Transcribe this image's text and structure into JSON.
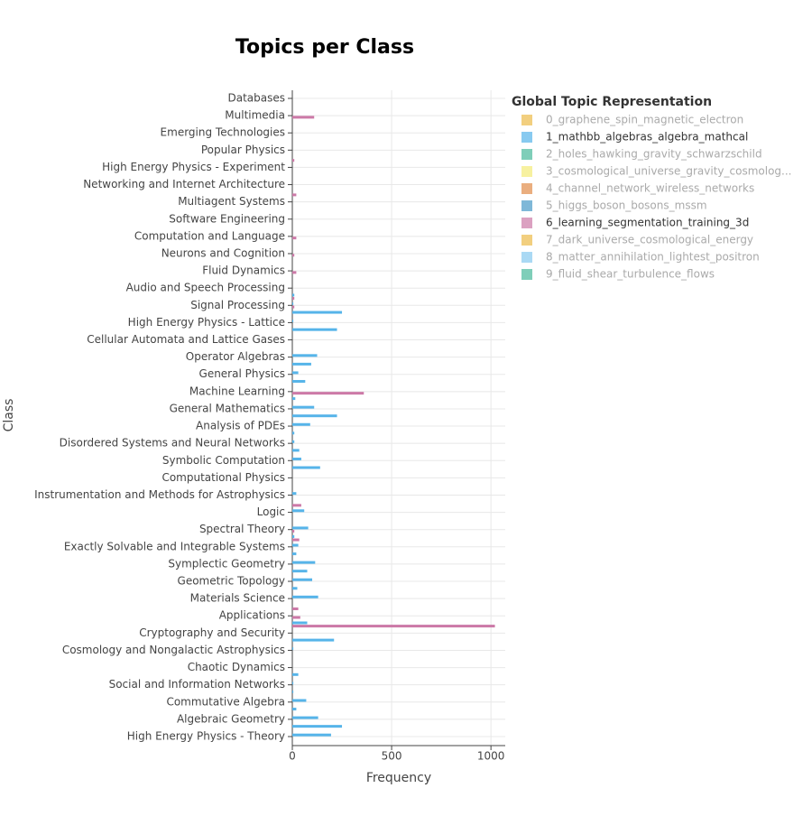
{
  "chart_data": {
    "type": "hbar",
    "title": "Topics per Class",
    "xlabel": "Frequency",
    "ylabel": "Class",
    "legend_title": "Global Topic Representation",
    "legend": "top-right",
    "grid": true,
    "xlim": [
      0,
      1072
    ],
    "xticks": [
      0,
      500,
      1000
    ],
    "categories": [
      "Databases",
      null,
      "Multimedia",
      null,
      "Emerging Technologies",
      null,
      "Popular Physics",
      null,
      "High Energy Physics - Experiment",
      null,
      "Networking and Internet Architecture",
      null,
      "Multiagent Systems",
      null,
      "Software Engineering",
      null,
      "Computation and Language",
      null,
      "Neurons and Cognition",
      null,
      "Fluid Dynamics",
      null,
      "Audio and Speech Processing",
      null,
      "Signal Processing",
      null,
      "High Energy Physics - Lattice",
      null,
      "Cellular Automata and Lattice Gases",
      null,
      "Operator Algebras",
      null,
      "General Physics",
      null,
      "Machine Learning",
      null,
      "General Mathematics",
      null,
      "Analysis of PDEs",
      null,
      "Disordered Systems and Neural Networks",
      null,
      "Symbolic Computation",
      null,
      "Computational Physics",
      null,
      "Instrumentation and Methods for Astrophysics",
      null,
      "Logic",
      null,
      "Spectral Theory",
      null,
      "Exactly Solvable and Integrable Systems",
      null,
      "Symplectic Geometry",
      null,
      "Geometric Topology",
      null,
      "Materials Science",
      null,
      "Applications",
      null,
      "Cryptography and Security",
      null,
      "Cosmology and Nongalactic Astrophysics",
      null,
      "Chaotic Dynamics",
      null,
      "Social and Information Networks",
      null,
      "Commutative Algebra",
      null,
      "Algebraic Geometry",
      null,
      "High Energy Physics - Theory"
    ],
    "series": [
      {
        "name": "0_graphene_spin_magnetic_electron",
        "color": "#E69F00",
        "visible": false
      },
      {
        "name": "1_mathbb_algebras_algebra_mathcal",
        "color": "#56B4E9",
        "visible": true,
        "values": [
          0,
          0,
          0,
          0,
          0,
          0,
          0,
          0,
          0,
          0,
          0,
          0,
          0,
          0,
          0,
          0,
          0,
          0,
          0,
          0,
          0,
          0,
          0,
          10,
          5,
          250,
          5,
          225,
          0,
          0,
          125,
          95,
          30,
          65,
          0,
          15,
          110,
          225,
          90,
          10,
          10,
          35,
          45,
          140,
          0,
          0,
          20,
          0,
          60,
          0,
          80,
          10,
          30,
          20,
          115,
          75,
          100,
          25,
          130,
          0,
          0,
          75,
          0,
          210,
          5,
          0,
          0,
          30,
          5,
          5,
          70,
          20,
          130,
          250,
          195
        ]
      },
      {
        "name": "2_holes_hawking_gravity_schwarzschild",
        "color": "#009E73",
        "visible": false
      },
      {
        "name": "3_cosmological_universe_gravity_cosmolog...",
        "color": "#F0E442",
        "visible": false
      },
      {
        "name": "4_channel_network_wireless_networks",
        "color": "#D55E00",
        "visible": false
      },
      {
        "name": "5_higgs_boson_bosons_mssm",
        "color": "#0072B2",
        "visible": false
      },
      {
        "name": "6_learning_segmentation_training_3d",
        "color": "#CC79A7",
        "visible": true,
        "values": [
          0,
          0,
          110,
          0,
          0,
          0,
          0,
          10,
          0,
          0,
          0,
          20,
          0,
          0,
          0,
          0,
          20,
          0,
          10,
          0,
          20,
          0,
          0,
          10,
          10,
          0,
          0,
          0,
          0,
          0,
          0,
          0,
          0,
          0,
          360,
          0,
          0,
          0,
          0,
          0,
          0,
          0,
          0,
          0,
          0,
          0,
          0,
          45,
          0,
          0,
          10,
          35,
          0,
          0,
          0,
          0,
          0,
          0,
          0,
          30,
          40,
          1020,
          0,
          0,
          0,
          0,
          0,
          0,
          0,
          0,
          0,
          0,
          0,
          0,
          0
        ]
      },
      {
        "name": "7_dark_universe_cosmological_energy",
        "color": "#E69F00",
        "visible": false
      },
      {
        "name": "8_matter_annihilation_lightest_positron",
        "color": "#56B4E9",
        "visible": false
      },
      {
        "name": "9_fluid_shear_turbulence_flows",
        "color": "#009E73",
        "visible": false
      }
    ]
  }
}
